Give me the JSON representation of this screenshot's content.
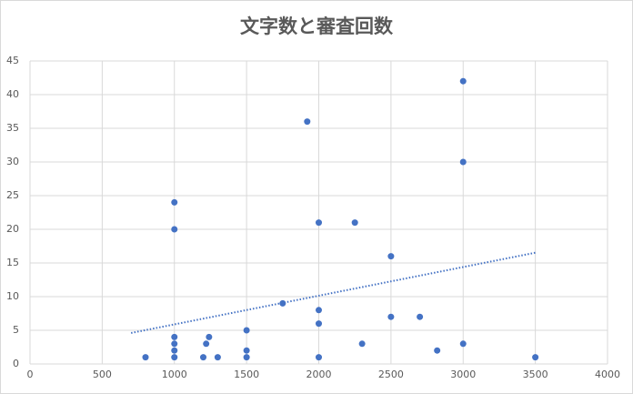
{
  "chart_data": {
    "type": "scatter",
    "title": "文字数と審査回数",
    "color": "#4472c4",
    "x": [
      800,
      1000,
      1000,
      1000,
      1000,
      1000,
      1000,
      1200,
      1220,
      1240,
      1300,
      1500,
      1500,
      1500,
      1750,
      1920,
      2000,
      2000,
      2000,
      2000,
      2250,
      2300,
      2500,
      2500,
      2700,
      2820,
      3000,
      3000,
      3000,
      3500
    ],
    "values": [
      1,
      24,
      20,
      4,
      3,
      2,
      1,
      1,
      3,
      4,
      1,
      5,
      2,
      1,
      9,
      36,
      21,
      8,
      6,
      1,
      21,
      3,
      16,
      7,
      7,
      2,
      42,
      30,
      3,
      1
    ],
    "xlim": [
      0,
      4000
    ],
    "xticks": [
      0,
      500,
      1000,
      1500,
      2000,
      2500,
      3000,
      3500,
      4000
    ],
    "ylim": [
      0,
      45
    ],
    "yticks": [
      0,
      5,
      10,
      15,
      20,
      25,
      30,
      35,
      40,
      45
    ],
    "grid": true,
    "trendline": "linear",
    "trendline_xlim": [
      700,
      3500
    ]
  }
}
